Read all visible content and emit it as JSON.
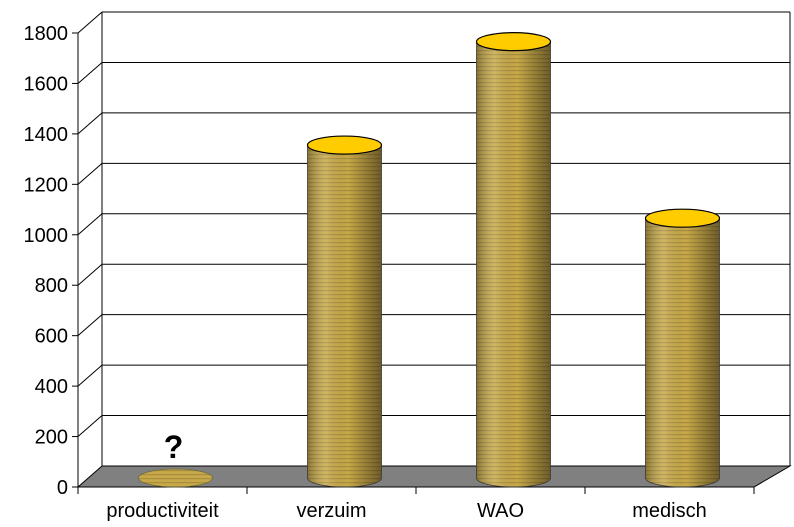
{
  "chart_data": {
    "type": "bar",
    "style": "3d-cylinder",
    "title": "",
    "xlabel": "",
    "ylabel": "",
    "categories": [
      "productiviteit",
      "verzuim",
      "WAO",
      "medisch"
    ],
    "values": [
      0,
      1320,
      1730,
      1030
    ],
    "ylim": [
      0,
      1800
    ],
    "yticks": [
      "0",
      "200",
      "400",
      "600",
      "800",
      "1000",
      "1200",
      "1400",
      "1600",
      "1800"
    ],
    "grid": true,
    "legend": "none",
    "annotations": [
      {
        "category": "productiviteit",
        "text": "?"
      }
    ],
    "colors": {
      "bar_body": "#c8a848",
      "bar_stripe": "#8a7a3a",
      "bar_top": "#ffcc00",
      "floor": "#808080",
      "grid": "#000000"
    }
  }
}
